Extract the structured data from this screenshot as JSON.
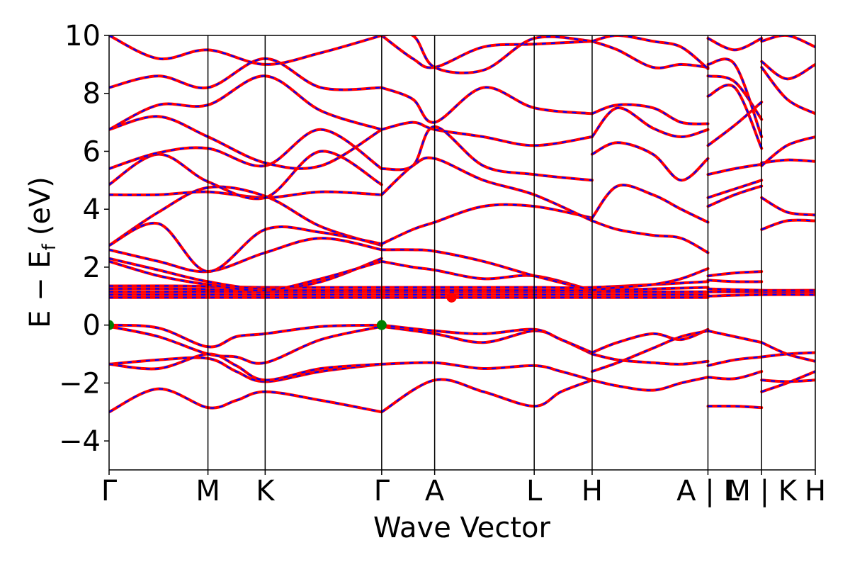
{
  "chart_data": {
    "type": "line",
    "xlabel": "Wave Vector",
    "ylabel_parts": {
      "main": "E − E",
      "sub": "f",
      "unit": "(eV)"
    },
    "ylim": [
      -5,
      10
    ],
    "yticks": [
      -4,
      -2,
      0,
      2,
      4,
      6,
      8,
      10
    ],
    "ytick_labels": [
      "−4",
      "−2",
      "0",
      "2",
      "4",
      "6",
      "8",
      "10"
    ],
    "xlim": [
      0,
      1
    ],
    "kpoints": [
      {
        "label": "Γ",
        "x": 0.0
      },
      {
        "label": "M",
        "x": 0.14
      },
      {
        "label": "K",
        "x": 0.221
      },
      {
        "label": "Γ",
        "x": 0.386
      },
      {
        "label": "A",
        "x": 0.461
      },
      {
        "label": "L",
        "x": 0.602
      },
      {
        "label": "H",
        "x": 0.684
      },
      {
        "label": "A | L",
        "x": 0.848
      },
      {
        "label": "M | K",
        "x": 0.924
      },
      {
        "label": "H",
        "x": 1.0
      }
    ],
    "grid": false,
    "series_colors": {
      "primary": "#ff0000",
      "overlay": "#0000ff"
    },
    "markers": [
      {
        "label": "VBM",
        "x": 0.0,
        "y": 0.0,
        "color": "#008000"
      },
      {
        "label": "VBM",
        "x": 0.386,
        "y": 0.0,
        "color": "#008000"
      },
      {
        "label": "CBM",
        "x": 0.485,
        "y": 0.95,
        "color": "#ff0000"
      }
    ],
    "series": [
      {
        "x": [
          0.0,
          0.07,
          0.14,
          0.18,
          0.221,
          0.3,
          0.386
        ],
        "y": [
          -3.0,
          -2.2,
          -2.85,
          -2.6,
          -2.3,
          -2.6,
          -3.0
        ]
      },
      {
        "x": [
          0.0,
          0.07,
          0.14,
          0.18,
          0.221,
          0.3,
          0.386
        ],
        "y": [
          -1.35,
          -1.2,
          -1.15,
          -1.6,
          -1.95,
          -1.6,
          -1.35
        ]
      },
      {
        "x": [
          0.0,
          0.07,
          0.14,
          0.18,
          0.221,
          0.3,
          0.386
        ],
        "y": [
          -1.35,
          -1.5,
          -1.0,
          -1.4,
          -1.9,
          -1.5,
          -1.35
        ]
      },
      {
        "x": [
          0.0,
          0.07,
          0.14,
          0.18,
          0.221,
          0.3,
          0.386
        ],
        "y": [
          -0.05,
          -0.4,
          -1.0,
          -1.1,
          -1.3,
          -0.5,
          -0.05
        ]
      },
      {
        "x": [
          0.0,
          0.07,
          0.14,
          0.18,
          0.221,
          0.3,
          0.386
        ],
        "y": [
          0.0,
          -0.1,
          -0.75,
          -0.4,
          -0.3,
          -0.05,
          0.0
        ]
      },
      {
        "x": [
          0.386,
          0.461,
          0.53,
          0.602,
          0.64,
          0.684
        ],
        "y": [
          -3.0,
          -1.9,
          -2.3,
          -2.8,
          -2.3,
          -1.9
        ]
      },
      {
        "x": [
          0.386,
          0.461,
          0.53,
          0.602,
          0.64,
          0.684
        ],
        "y": [
          -1.35,
          -1.3,
          -1.5,
          -1.4,
          -1.6,
          -1.9
        ]
      },
      {
        "x": [
          0.386,
          0.461,
          0.53,
          0.602,
          0.64,
          0.684
        ],
        "y": [
          -0.05,
          -0.3,
          -0.6,
          -0.2,
          -0.5,
          -1.0
        ]
      },
      {
        "x": [
          0.386,
          0.461,
          0.53,
          0.602,
          0.64,
          0.684
        ],
        "y": [
          0.0,
          -0.2,
          -0.3,
          -0.15,
          -0.5,
          -0.95
        ]
      },
      {
        "x": [
          0.684,
          0.72,
          0.77,
          0.81,
          0.848
        ],
        "y": [
          -1.9,
          -2.1,
          -2.25,
          -2.0,
          -1.8
        ]
      },
      {
        "x": [
          0.684,
          0.72,
          0.77,
          0.81,
          0.848
        ],
        "y": [
          -1.0,
          -1.2,
          -1.3,
          -1.35,
          -1.25
        ]
      },
      {
        "x": [
          0.684,
          0.72,
          0.77,
          0.81,
          0.848
        ],
        "y": [
          -0.95,
          -0.6,
          -0.3,
          -0.5,
          -0.15
        ]
      },
      {
        "x": [
          0.684,
          0.72,
          0.77,
          0.81,
          0.848
        ],
        "y": [
          -1.6,
          -1.3,
          -0.8,
          -0.4,
          -0.2
        ]
      },
      {
        "x": [
          0.848,
          0.886,
          0.924
        ],
        "y": [
          -2.8,
          -2.8,
          -2.85
        ]
      },
      {
        "x": [
          0.848,
          0.886,
          0.924
        ],
        "y": [
          -1.8,
          -1.85,
          -1.6
        ]
      },
      {
        "x": [
          0.848,
          0.886,
          0.924
        ],
        "y": [
          -1.4,
          -1.2,
          -1.1
        ]
      },
      {
        "x": [
          0.848,
          0.886,
          0.924
        ],
        "y": [
          -0.2,
          -0.4,
          -0.6
        ]
      },
      {
        "x": [
          0.924,
          0.96,
          1.0
        ],
        "y": [
          -2.3,
          -2.0,
          -1.6
        ]
      },
      {
        "x": [
          0.924,
          0.96,
          1.0
        ],
        "y": [
          -1.9,
          -1.95,
          -1.9
        ]
      },
      {
        "x": [
          0.924,
          0.96,
          1.0
        ],
        "y": [
          -1.1,
          -1.0,
          -0.95
        ]
      },
      {
        "x": [
          0.924,
          0.96,
          1.0
        ],
        "y": [
          -0.6,
          -1.0,
          -1.25
        ]
      },
      {
        "x": [
          0.0,
          0.1,
          0.221,
          0.386,
          0.461,
          0.602,
          0.684,
          0.848
        ],
        "y": [
          0.95,
          0.95,
          0.95,
          0.95,
          0.95,
          0.95,
          0.95,
          0.95
        ]
      },
      {
        "x": [
          0.0,
          0.1,
          0.221,
          0.386,
          0.461,
          0.602,
          0.684,
          0.848
        ],
        "y": [
          1.05,
          1.05,
          1.05,
          1.05,
          1.05,
          1.05,
          1.05,
          1.05
        ]
      },
      {
        "x": [
          0.0,
          0.1,
          0.221,
          0.386,
          0.461,
          0.602,
          0.684,
          0.848
        ],
        "y": [
          1.15,
          1.15,
          1.15,
          1.15,
          1.15,
          1.15,
          1.15,
          1.15
        ]
      },
      {
        "x": [
          0.0,
          0.1,
          0.221,
          0.386,
          0.461,
          0.602,
          0.684,
          0.848
        ],
        "y": [
          1.25,
          1.25,
          1.2,
          1.2,
          1.2,
          1.2,
          1.2,
          1.3
        ]
      },
      {
        "x": [
          0.0,
          0.1,
          0.221,
          0.386,
          0.461,
          0.602,
          0.684,
          0.848
        ],
        "y": [
          1.35,
          1.35,
          1.3,
          1.3,
          1.3,
          1.3,
          1.3,
          1.5
        ]
      },
      {
        "x": [
          0.848,
          0.924,
          1.0
        ],
        "y": [
          1.0,
          1.05,
          1.05
        ]
      },
      {
        "x": [
          0.848,
          0.924,
          1.0
        ],
        "y": [
          1.15,
          1.15,
          1.15
        ]
      },
      {
        "x": [
          0.848,
          0.924,
          1.0
        ],
        "y": [
          1.25,
          1.2,
          1.2
        ]
      },
      {
        "x": [
          0.848,
          0.886,
          0.924
        ],
        "y": [
          1.55,
          1.5,
          1.5
        ]
      },
      {
        "x": [
          0.848,
          0.886,
          0.924
        ],
        "y": [
          1.7,
          1.8,
          1.85
        ]
      },
      {
        "x": [
          0.0,
          0.07,
          0.14,
          0.221,
          0.3,
          0.386
        ],
        "y": [
          2.3,
          1.9,
          1.5,
          1.25,
          1.5,
          2.3
        ]
      },
      {
        "x": [
          0.0,
          0.07,
          0.14,
          0.221,
          0.3,
          0.386
        ],
        "y": [
          2.2,
          1.7,
          1.4,
          1.2,
          1.6,
          2.2
        ]
      },
      {
        "x": [
          0.0,
          0.07,
          0.14,
          0.221,
          0.3,
          0.386
        ],
        "y": [
          2.6,
          2.2,
          1.85,
          2.5,
          3.0,
          2.6
        ]
      },
      {
        "x": [
          0.0,
          0.07,
          0.14,
          0.221,
          0.3,
          0.386
        ],
        "y": [
          2.75,
          3.9,
          4.75,
          4.45,
          3.4,
          2.75
        ]
      },
      {
        "x": [
          0.0,
          0.07,
          0.14,
          0.221,
          0.3,
          0.386
        ],
        "y": [
          2.75,
          3.5,
          1.85,
          3.3,
          3.2,
          2.8
        ]
      },
      {
        "x": [
          0.0,
          0.07,
          0.14,
          0.221,
          0.3,
          0.386
        ],
        "y": [
          4.5,
          4.5,
          4.6,
          4.4,
          4.6,
          4.5
        ]
      },
      {
        "x": [
          0.0,
          0.07,
          0.14,
          0.221,
          0.3,
          0.386
        ],
        "y": [
          4.85,
          5.9,
          4.95,
          4.4,
          6.0,
          4.85
        ]
      },
      {
        "x": [
          0.0,
          0.07,
          0.14,
          0.221,
          0.3,
          0.386
        ],
        "y": [
          5.4,
          5.95,
          6.1,
          5.5,
          6.75,
          5.4
        ]
      },
      {
        "x": [
          0.0,
          0.07,
          0.14,
          0.221,
          0.3,
          0.386
        ],
        "y": [
          6.75,
          7.2,
          6.5,
          5.6,
          5.5,
          6.75
        ]
      },
      {
        "x": [
          0.0,
          0.07,
          0.14,
          0.221,
          0.3,
          0.386
        ],
        "y": [
          6.75,
          7.6,
          7.6,
          8.6,
          7.4,
          6.75
        ]
      },
      {
        "x": [
          0.0,
          0.07,
          0.14,
          0.221,
          0.3,
          0.386
        ],
        "y": [
          8.2,
          8.6,
          8.2,
          9.2,
          8.2,
          8.2
        ]
      },
      {
        "x": [
          0.0,
          0.07,
          0.14,
          0.221,
          0.3,
          0.386
        ],
        "y": [
          10.0,
          9.2,
          9.5,
          9.0,
          9.4,
          10.0
        ]
      },
      {
        "x": [
          0.386,
          0.43,
          0.461,
          0.53,
          0.602,
          0.684
        ],
        "y": [
          2.2,
          2.0,
          1.9,
          1.6,
          1.7,
          1.2
        ]
      },
      {
        "x": [
          0.386,
          0.43,
          0.461,
          0.53,
          0.602,
          0.684
        ],
        "y": [
          2.6,
          2.6,
          2.55,
          2.2,
          1.7,
          1.2
        ]
      },
      {
        "x": [
          0.386,
          0.43,
          0.461,
          0.53,
          0.602,
          0.684
        ],
        "y": [
          2.8,
          3.3,
          3.55,
          4.1,
          4.1,
          3.7
        ]
      },
      {
        "x": [
          0.386,
          0.43,
          0.461,
          0.53,
          0.602,
          0.684
        ],
        "y": [
          4.5,
          5.5,
          5.75,
          5.0,
          4.5,
          3.6
        ]
      },
      {
        "x": [
          0.386,
          0.43,
          0.461,
          0.53,
          0.602,
          0.684
        ],
        "y": [
          5.4,
          5.5,
          6.85,
          5.5,
          5.2,
          5.0
        ]
      },
      {
        "x": [
          0.386,
          0.43,
          0.461,
          0.53,
          0.602,
          0.684
        ],
        "y": [
          6.75,
          7.0,
          6.75,
          6.5,
          6.2,
          6.5
        ]
      },
      {
        "x": [
          0.386,
          0.43,
          0.461,
          0.53,
          0.602,
          0.684
        ],
        "y": [
          8.2,
          7.8,
          7.0,
          8.2,
          7.5,
          7.3
        ]
      },
      {
        "x": [
          0.386,
          0.43,
          0.461,
          0.53,
          0.602,
          0.684
        ],
        "y": [
          10.0,
          9.2,
          8.9,
          9.6,
          9.7,
          9.8
        ]
      },
      {
        "x": [
          0.386,
          0.43,
          0.461,
          0.53,
          0.602,
          0.684
        ],
        "y": [
          10.0,
          10.0,
          8.9,
          8.8,
          9.9,
          9.8
        ]
      },
      {
        "x": [
          0.684,
          0.72,
          0.77,
          0.81,
          0.848
        ],
        "y": [
          1.2,
          1.3,
          1.4,
          1.6,
          1.95
        ]
      },
      {
        "x": [
          0.684,
          0.72,
          0.77,
          0.81,
          0.848
        ],
        "y": [
          3.6,
          3.3,
          3.1,
          3.0,
          2.5
        ]
      },
      {
        "x": [
          0.684,
          0.72,
          0.77,
          0.81,
          0.848
        ],
        "y": [
          3.7,
          4.8,
          4.5,
          4.0,
          3.55
        ]
      },
      {
        "x": [
          0.684,
          0.72,
          0.77,
          0.81,
          0.848
        ],
        "y": [
          5.9,
          6.3,
          5.9,
          5.0,
          5.75
        ]
      },
      {
        "x": [
          0.684,
          0.72,
          0.77,
          0.81,
          0.848
        ],
        "y": [
          6.5,
          7.5,
          6.8,
          6.5,
          6.75
        ]
      },
      {
        "x": [
          0.684,
          0.72,
          0.77,
          0.81,
          0.848
        ],
        "y": [
          7.3,
          7.6,
          7.5,
          7.0,
          6.95
        ]
      },
      {
        "x": [
          0.684,
          0.72,
          0.77,
          0.81,
          0.848
        ],
        "y": [
          9.8,
          9.5,
          8.9,
          9.0,
          8.9
        ]
      },
      {
        "x": [
          0.684,
          0.72,
          0.77,
          0.81,
          0.848
        ],
        "y": [
          9.8,
          10.0,
          9.8,
          9.6,
          8.85
        ]
      },
      {
        "x": [
          0.848,
          0.886,
          0.924
        ],
        "y": [
          4.1,
          4.5,
          4.8
        ]
      },
      {
        "x": [
          0.848,
          0.886,
          0.924
        ],
        "y": [
          4.4,
          4.7,
          5.0
        ]
      },
      {
        "x": [
          0.848,
          0.886,
          0.924
        ],
        "y": [
          5.2,
          5.4,
          5.55
        ]
      },
      {
        "x": [
          0.848,
          0.886,
          0.924
        ],
        "y": [
          6.2,
          6.9,
          7.7
        ]
      },
      {
        "x": [
          0.848,
          0.886,
          0.924
        ],
        "y": [
          7.9,
          8.2,
          6.1
        ]
      },
      {
        "x": [
          0.848,
          0.886,
          0.924
        ],
        "y": [
          8.6,
          8.4,
          7.1
        ]
      },
      {
        "x": [
          0.848,
          0.886,
          0.924
        ],
        "y": [
          9.0,
          9.0,
          6.5
        ]
      },
      {
        "x": [
          0.848,
          0.886,
          0.924
        ],
        "y": [
          9.9,
          9.5,
          9.9
        ]
      },
      {
        "x": [
          0.924,
          0.96,
          1.0
        ],
        "y": [
          3.3,
          3.6,
          3.6
        ]
      },
      {
        "x": [
          0.924,
          0.96,
          1.0
        ],
        "y": [
          4.4,
          3.9,
          3.8
        ]
      },
      {
        "x": [
          0.924,
          0.96,
          1.0
        ],
        "y": [
          5.6,
          5.7,
          5.65
        ]
      },
      {
        "x": [
          0.924,
          0.96,
          1.0
        ],
        "y": [
          5.5,
          6.2,
          6.5
        ]
      },
      {
        "x": [
          0.924,
          0.96,
          1.0
        ],
        "y": [
          8.9,
          7.8,
          7.3
        ]
      },
      {
        "x": [
          0.924,
          0.96,
          1.0
        ],
        "y": [
          9.1,
          8.5,
          9.0
        ]
      },
      {
        "x": [
          0.924,
          0.96,
          1.0
        ],
        "y": [
          9.8,
          10.0,
          9.6
        ]
      }
    ]
  }
}
